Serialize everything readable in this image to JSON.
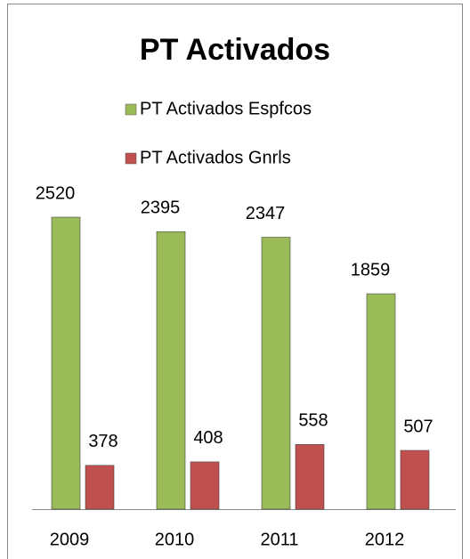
{
  "chart_data": {
    "type": "bar",
    "title": "PT Activados",
    "categories": [
      "2009",
      "2010",
      "2011",
      "2012"
    ],
    "series": [
      {
        "name": "PT Activados Espfcos",
        "color": "#9bbb59",
        "values": [
          2520,
          2395,
          2347,
          1859
        ]
      },
      {
        "name": "PT Activados Gnrls",
        "color": "#c0504d",
        "values": [
          378,
          408,
          558,
          507
        ]
      }
    ]
  }
}
